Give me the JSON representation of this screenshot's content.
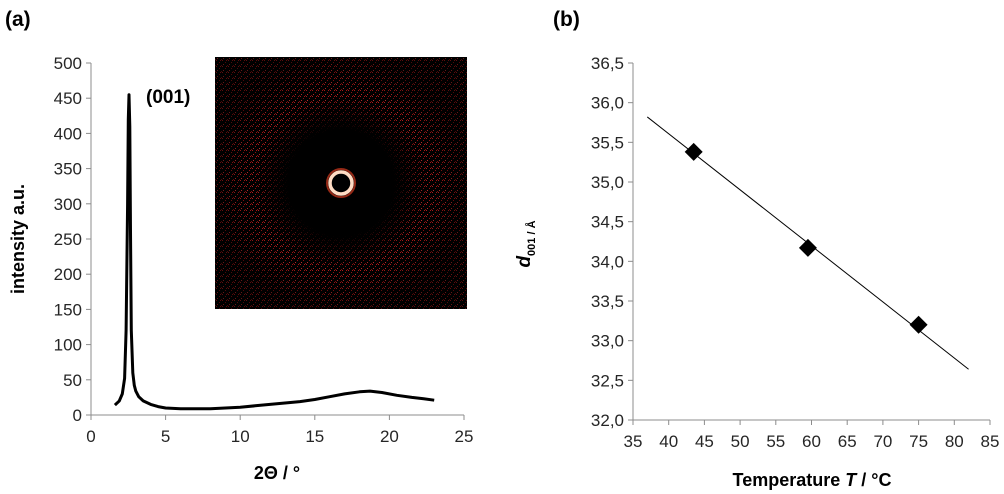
{
  "chart_data": [
    {
      "type": "line",
      "panel_label": "(a)",
      "xlabel": "2Θ / °",
      "ylabel": "intensity a.u.",
      "xlim": [
        0,
        25
      ],
      "ylim": [
        0,
        500
      ],
      "xticks": [
        "0",
        "5",
        "10",
        "15",
        "20",
        "25"
      ],
      "yticks": [
        "0",
        "50",
        "100",
        "150",
        "200",
        "250",
        "300",
        "350",
        "400",
        "450",
        "500"
      ],
      "grid": false,
      "series": [
        {
          "x": [
            1.6,
            1.9,
            2.1,
            2.25,
            2.35,
            2.45,
            2.5,
            2.55,
            2.6,
            2.65,
            2.7,
            2.8,
            2.9,
            3.0,
            3.2,
            3.5,
            4.0,
            4.5,
            5.0,
            6.0,
            7.0,
            8.0,
            9.0,
            10.0,
            11.0,
            12.0,
            13.0,
            14.0,
            15.0,
            16.0,
            17.0,
            18.0,
            18.7,
            19.5,
            20.5,
            21.5,
            22.3,
            23.0
          ],
          "y": [
            14,
            20,
            30,
            52,
            120,
            300,
            420,
            455,
            410,
            260,
            120,
            60,
            42,
            34,
            26,
            20,
            15,
            12,
            10,
            9,
            9,
            9,
            10,
            11,
            13,
            15,
            17,
            19,
            22,
            26,
            30,
            33,
            34,
            32,
            28,
            25,
            23,
            21
          ]
        }
      ],
      "annotations": [
        "(001)"
      ],
      "inset": {
        "type": "2D diffraction pattern",
        "colors": {
          "background": "#000000",
          "speckle": "#c01818",
          "ring": "#ffd9c0"
        }
      }
    },
    {
      "type": "scatter",
      "panel_label": "(b)",
      "xlabel_parts": [
        "Temperature ",
        "T",
        " / °C"
      ],
      "ylabel_parts": [
        "d",
        "001 / Å"
      ],
      "xlim": [
        35,
        85
      ],
      "ylim": [
        32.0,
        36.5
      ],
      "xticks": [
        "35",
        "40",
        "45",
        "50",
        "55",
        "60",
        "65",
        "70",
        "75",
        "80",
        "85"
      ],
      "yticks": [
        "32,0",
        "32,5",
        "33,0",
        "33,5",
        "34,0",
        "34,5",
        "35,0",
        "35,5",
        "36,0",
        "36,5"
      ],
      "grid": false,
      "series": [
        {
          "x": [
            43.5,
            59.5,
            75.0
          ],
          "y": [
            35.38,
            34.17,
            33.2
          ],
          "marker": "diamond"
        }
      ],
      "trendline": {
        "x": [
          37,
          82
        ],
        "y": [
          35.82,
          32.64
        ]
      }
    }
  ]
}
